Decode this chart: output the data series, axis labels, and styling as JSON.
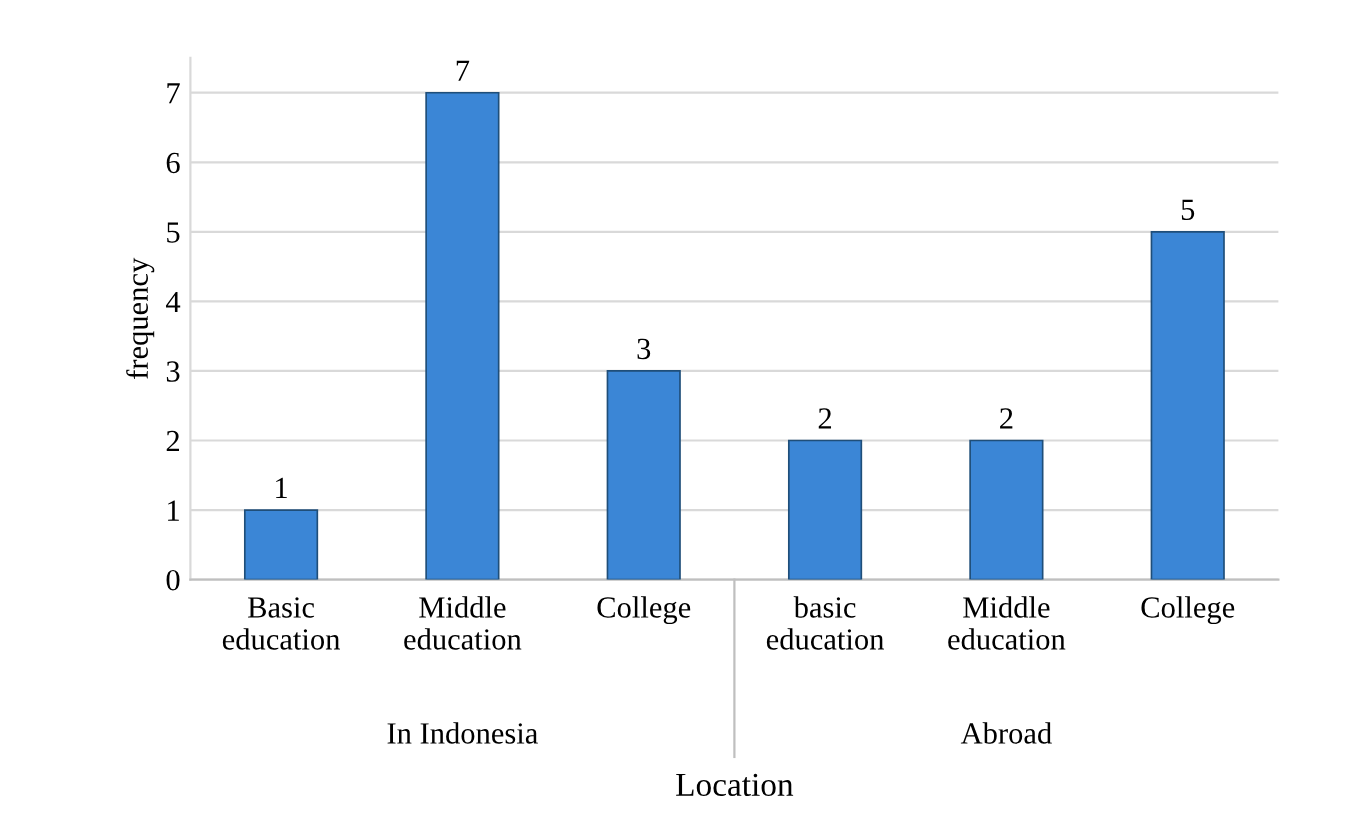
{
  "chart_data": {
    "type": "bar",
    "xlabel": "Location",
    "ylabel": "frequency",
    "categories": [
      "Basic education",
      "Middle education",
      "College",
      "basic education",
      "Middle education",
      "College"
    ],
    "values": [
      1,
      7,
      3,
      2,
      2,
      5
    ],
    "color": "#3b86d6",
    "ylim": [
      0,
      7.5
    ],
    "yticks": [
      0,
      1,
      2,
      3,
      4,
      5,
      6,
      7
    ],
    "grid": "y",
    "data_labels": true,
    "annotations": [
      "In Indonesia",
      "Abroad"
    ]
  }
}
